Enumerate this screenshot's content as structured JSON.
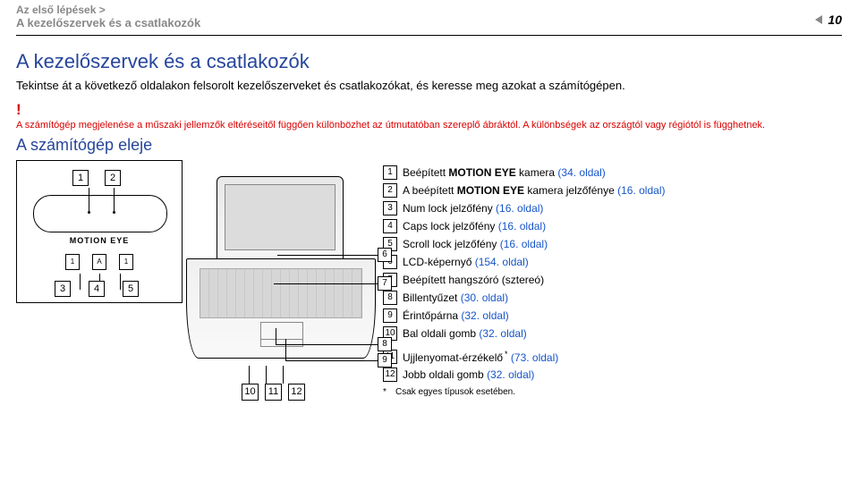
{
  "breadcrumb": {
    "line1": "Az első lépések >",
    "line2": "A kezelőszervek és a csatlakozók"
  },
  "page_number": "10",
  "title": "A kezelőszervek és a csatlakozók",
  "intro": "Tekintse át a következő oldalakon felsorolt kezelőszerveket és csatlakozókat, és keresse meg azokat a számítógépen.",
  "note": {
    "bang": "!",
    "text": "A számítógép megjelenése a műszaki jellemzők eltéréseitől függően különbözhet az útmutatóban szereplő ábráktól. A különbségek az országtól vagy régiótól is függhetnek."
  },
  "subtitle": "A számítógép eleje",
  "inset_label": "MOTION EYE",
  "tiny_icons": [
    "1",
    "A",
    "1"
  ],
  "items": [
    {
      "n": "1",
      "pre": "Beépített ",
      "bold": "MOTION EYE",
      "post": " kamera ",
      "link": "(34. oldal)"
    },
    {
      "n": "2",
      "pre": "A beépített ",
      "bold": "MOTION EYE",
      "post": " kamera jelzőfénye ",
      "link": "(16. oldal)"
    },
    {
      "n": "3",
      "pre": "Num lock jelzőfény ",
      "bold": "",
      "post": "",
      "link": "(16. oldal)"
    },
    {
      "n": "4",
      "pre": "Caps lock jelzőfény ",
      "bold": "",
      "post": "",
      "link": "(16. oldal)"
    },
    {
      "n": "5",
      "pre": "Scroll lock jelzőfény ",
      "bold": "",
      "post": "",
      "link": "(16. oldal)"
    },
    {
      "n": "6",
      "pre": "LCD-képernyő ",
      "bold": "",
      "post": "",
      "link": "(154. oldal)"
    },
    {
      "n": "7",
      "pre": "Beépített hangszóró (sztereó)",
      "bold": "",
      "post": "",
      "link": ""
    },
    {
      "n": "8",
      "pre": "Billentyűzet ",
      "bold": "",
      "post": "",
      "link": "(30. oldal)"
    },
    {
      "n": "9",
      "pre": "Érintőpárna ",
      "bold": "",
      "post": "",
      "link": "(32. oldal)"
    },
    {
      "n": "10",
      "pre": "Bal oldali gomb ",
      "bold": "",
      "post": "",
      "link": "(32. oldal)"
    },
    {
      "n": "11",
      "pre": "Ujjlenyomat-érzékelő",
      "bold": "",
      "post": "",
      "star": "*",
      "link": " (73. oldal)"
    },
    {
      "n": "12",
      "pre": "Jobb oldali gomb ",
      "bold": "",
      "post": "",
      "link": "(32. oldal)"
    }
  ],
  "footnote": "Csak egyes típusok esetében."
}
